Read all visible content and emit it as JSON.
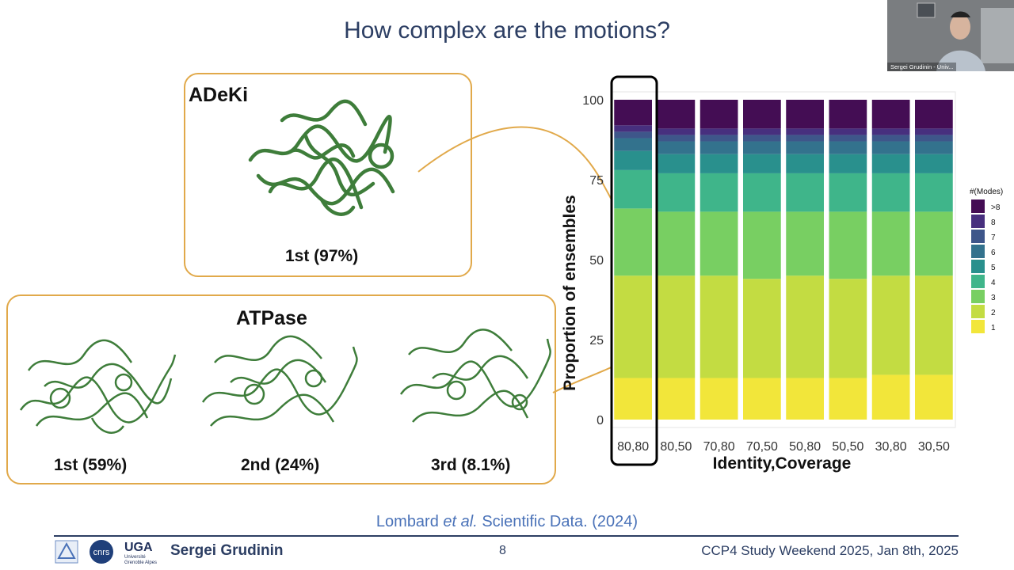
{
  "slide": {
    "title": "How complex are the motions?",
    "citation": {
      "authors": "Lombard",
      "etal": "et al.",
      "rest": " Scientific Data. (2024)"
    },
    "footer": {
      "author": "Sergei Grudinin",
      "page": "8",
      "event": "CCP4 Study Weekend 2025, Jan 8th, 2025",
      "uga_logo": "UGA",
      "uga_sub1": "Université",
      "uga_sub2": "Grenoble Alpes",
      "cnrs_logo": "cnrs"
    },
    "webcam_label": "Sergei Grudinin - Univ..."
  },
  "adeki": {
    "title": "ADeKi",
    "ranks": [
      "1st (97%)"
    ]
  },
  "atpase": {
    "title": "ATPase",
    "ranks": [
      "1st (59%)",
      "2nd (24%)",
      "3rd (8.1%)"
    ]
  },
  "colors": {
    "accent": "#e1a94a",
    "title": "#2c3e63",
    "citation": "#4a72b8",
    "protein": "#3e7d3a"
  },
  "chart_data": {
    "type": "bar",
    "stacked": true,
    "xlabel": "Identity,Coverage",
    "ylabel": "Proportion of ensembles",
    "ylim": [
      0,
      100
    ],
    "yticks": [
      "0",
      "25",
      "50",
      "75",
      "100"
    ],
    "categories": [
      "80,80",
      "80,50",
      "70,80",
      "70,50",
      "50,80",
      "50,50",
      "30,80",
      "30,50"
    ],
    "highlighted_category": "80,80",
    "legend_title": "#(Modes)",
    "legend_position": "right",
    "series": [
      {
        "name": "1",
        "color": "#f2e63a",
        "values": [
          13,
          13,
          13,
          13,
          13,
          13,
          14,
          14
        ]
      },
      {
        "name": "2",
        "color": "#c3dc42",
        "values": [
          32,
          32,
          32,
          31,
          32,
          31,
          31,
          31
        ]
      },
      {
        "name": "3",
        "color": "#78cf62",
        "values": [
          21,
          20,
          20,
          21,
          20,
          21,
          20,
          20
        ]
      },
      {
        "name": "4",
        "color": "#3fb58a",
        "values": [
          12,
          12,
          12,
          12,
          12,
          12,
          12,
          12
        ]
      },
      {
        "name": "5",
        "color": "#29908d",
        "values": [
          6,
          6,
          6,
          6,
          6,
          6,
          6,
          6
        ]
      },
      {
        "name": "6",
        "color": "#33728d",
        "values": [
          4,
          4,
          4,
          4,
          4,
          4,
          4,
          4
        ]
      },
      {
        "name": "7",
        "color": "#3e568a",
        "values": [
          2,
          2,
          2,
          2,
          2,
          2,
          2,
          2
        ]
      },
      {
        "name": "8",
        "color": "#472f7e",
        "values": [
          2,
          2,
          2,
          2,
          2,
          2,
          2,
          2
        ]
      },
      {
        "name": ">8",
        "color": "#440d54",
        "values": [
          8,
          9,
          9,
          9,
          9,
          9,
          9,
          9
        ]
      }
    ]
  }
}
